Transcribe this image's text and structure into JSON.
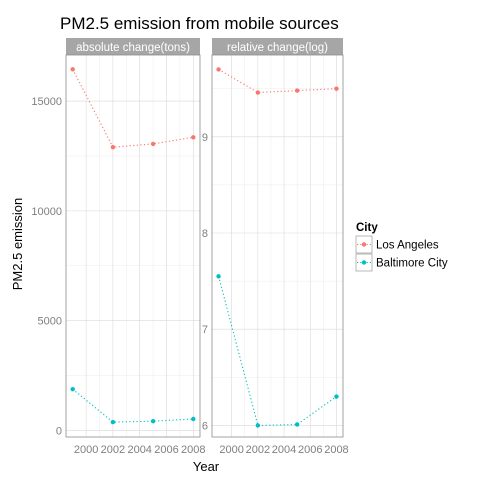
{
  "chart_data": {
    "type": "line",
    "title": "PM2.5 emission from mobile sources",
    "xlabel": "Year",
    "ylabel": "PM2.5 emission",
    "x": [
      1999,
      2002,
      2005,
      2008
    ],
    "x_ticks": [
      2000,
      2002,
      2004,
      2006,
      2008
    ],
    "xlim": [
      1998.5,
      2008.5
    ],
    "legend": {
      "title": "City",
      "position": "right"
    },
    "series_colors": {
      "Los Angeles": "#f8766d",
      "Baltimore City": "#00bfc4"
    },
    "line_style": "dotted",
    "grid": true,
    "panels": [
      {
        "label": "absolute change(tons)",
        "ylim": [
          -300,
          17100
        ],
        "y_ticks": [
          0,
          5000,
          10000,
          15000
        ],
        "y_tick_labels": [
          "0",
          "5000",
          "10000",
          "15000"
        ],
        "series": [
          {
            "name": "Los Angeles",
            "values": [
              16450,
              12900,
              13050,
              13350
            ]
          },
          {
            "name": "Baltimore City",
            "values": [
              1880,
              380,
              420,
              520
            ]
          }
        ]
      },
      {
        "label": "relative change(log)",
        "ylim": [
          5.88,
          9.85
        ],
        "y_ticks": [
          6,
          7,
          8,
          9
        ],
        "y_tick_labels": [
          "6",
          "7",
          "8",
          "9"
        ],
        "series": [
          {
            "name": "Los Angeles",
            "values": [
              9.7,
              9.46,
              9.48,
              9.5
            ]
          },
          {
            "name": "Baltimore City",
            "values": [
              7.55,
              6.0,
              6.01,
              6.3
            ]
          }
        ]
      }
    ]
  }
}
